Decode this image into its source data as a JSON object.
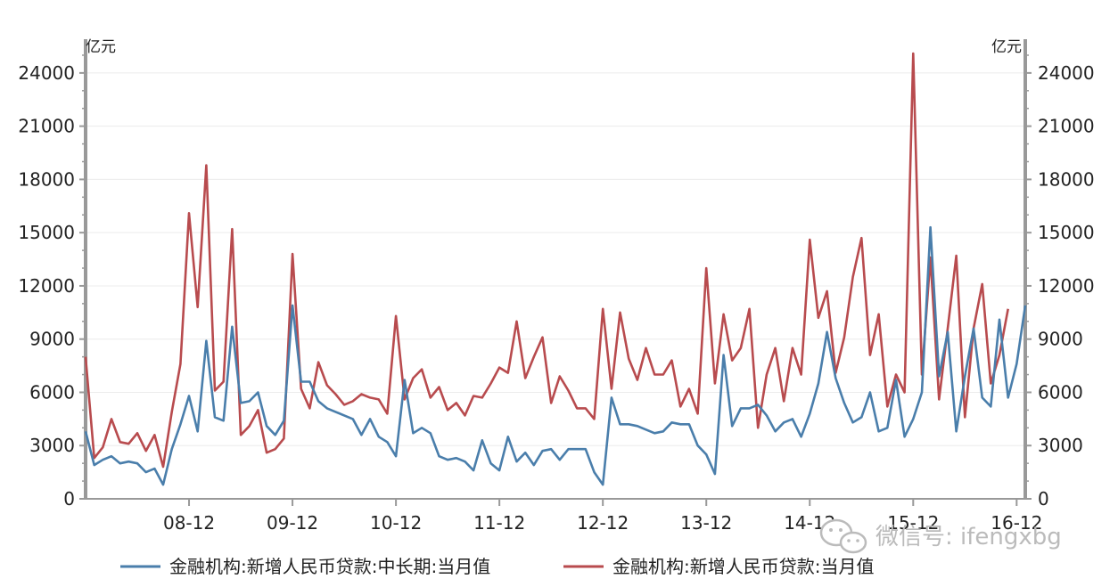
{
  "chart_data": {
    "type": "line",
    "y_unit_left": "亿元",
    "y_unit_right": "亿元",
    "ylim": [
      0,
      25500
    ],
    "yticks": [
      0,
      3000,
      6000,
      9000,
      12000,
      15000,
      18000,
      21000,
      24000
    ],
    "x_ticks": [
      "08-12",
      "09-12",
      "10-12",
      "11-12",
      "12-12",
      "13-12",
      "14-12",
      "15-12",
      "16-12"
    ],
    "x_tick_index": [
      12,
      24,
      36,
      48,
      60,
      72,
      84,
      96,
      108
    ],
    "grid": true,
    "legend_position": "bottom",
    "series": [
      {
        "name": "金融机构:新增人民币贷款:中长期:当月值",
        "color": "#4a7eab",
        "values": [
          3800,
          1900,
          2200,
          2400,
          2000,
          2100,
          2000,
          1500,
          1700,
          800,
          2800,
          4200,
          5800,
          3800,
          8900,
          4600,
          4400,
          9700,
          5400,
          5500,
          6000,
          4100,
          3600,
          4400,
          10900,
          6600,
          6600,
          5500,
          5100,
          4900,
          4700,
          4500,
          3600,
          4500,
          3500,
          3200,
          2400,
          6700,
          3700,
          4000,
          3700,
          2400,
          2200,
          2300,
          2100,
          1600,
          3300,
          2000,
          1600,
          3500,
          2100,
          2600,
          1900,
          2700,
          2800,
          2200,
          2800,
          2800,
          2800,
          1500,
          800,
          5700,
          4200,
          4200,
          4100,
          3900,
          3700,
          3800,
          4300,
          4200,
          4200,
          3000,
          2500,
          1400,
          8100,
          4100,
          5100,
          5100,
          5300,
          4700,
          3800,
          4300,
          4500,
          3500,
          4800,
          6500,
          9400,
          6800,
          5400,
          4300,
          4600,
          6000,
          3800,
          4000,
          6700,
          3500,
          4500,
          6000,
          15300,
          6900,
          9400,
          3800,
          6900,
          9600,
          5700,
          5200,
          10100,
          5700,
          7600,
          10900
        ]
      },
      {
        "name": "金融机构:新增人民币贷款:当月值",
        "color": "#b84b4e",
        "values": [
          8000,
          2300,
          2900,
          4500,
          3200,
          3100,
          3700,
          2700,
          3600,
          1800,
          4900,
          7600,
          16100,
          10800,
          18800,
          6100,
          6600,
          15200,
          3600,
          4100,
          5000,
          2600,
          2800,
          3400,
          13800,
          6200,
          5100,
          7700,
          6400,
          5900,
          5300,
          5500,
          5900,
          5700,
          5600,
          4800,
          10300,
          5600,
          6800,
          7300,
          5700,
          6300,
          5000,
          5400,
          4700,
          5800,
          5700,
          6500,
          7400,
          7100,
          10000,
          6800,
          8000,
          9100,
          5400,
          6900,
          6100,
          5100,
          5100,
          4500,
          10700,
          6200,
          10500,
          7900,
          6700,
          8500,
          7000,
          7000,
          7800,
          5200,
          6200,
          4800,
          13000,
          6500,
          10400,
          7800,
          8500,
          10700,
          4000,
          7000,
          8500,
          5500,
          8500,
          7000,
          14600,
          10200,
          11700,
          7100,
          9100,
          12500,
          14700,
          8100,
          10400,
          5200,
          7000,
          6000,
          25100,
          7000,
          13600,
          5600,
          9600,
          13700,
          4600,
          9600,
          12100,
          6500,
          8100,
          10700
        ]
      }
    ]
  },
  "watermark": {
    "icon": "wechat-icon",
    "text": "微信号: ifengxbg"
  }
}
